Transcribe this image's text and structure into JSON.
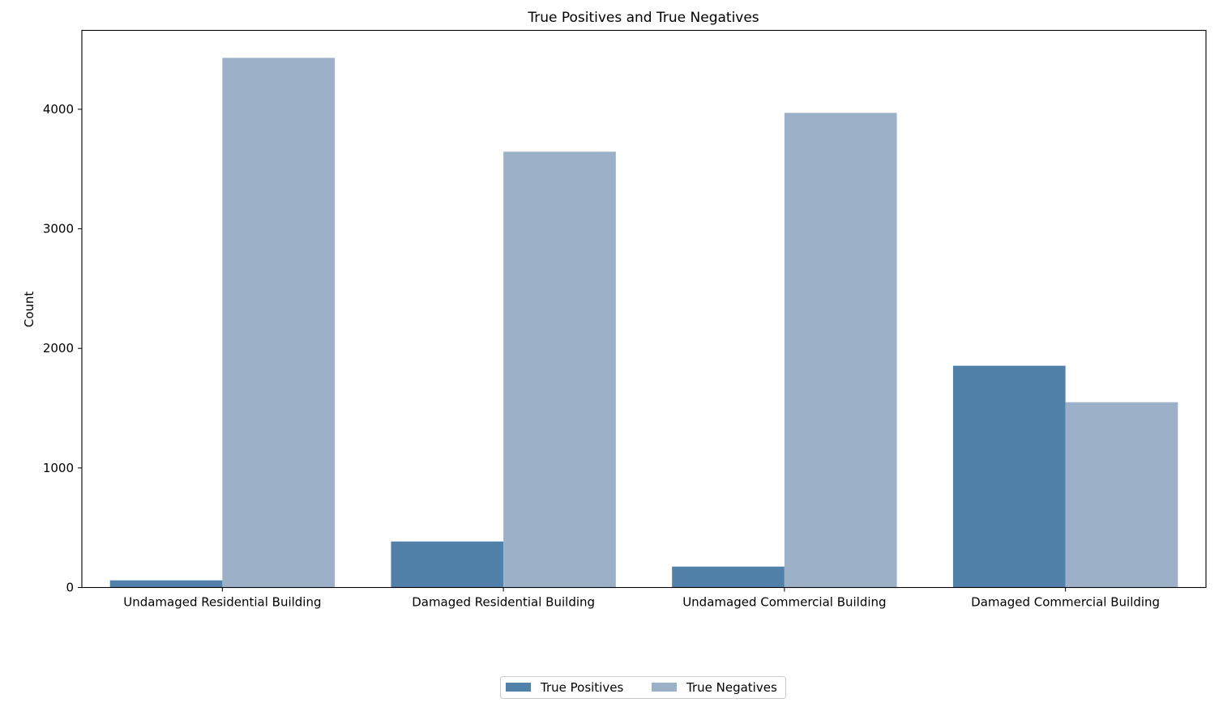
{
  "chart_data": {
    "type": "bar",
    "title": "True Positives and True Negatives",
    "xlabel": "",
    "ylabel": "Count",
    "categories": [
      "Undamaged Residential Building",
      "Damaged Residential Building",
      "Undamaged Commercial Building",
      "Damaged Commercial Building"
    ],
    "series": [
      {
        "name": "True Positives",
        "color": "#5181a8",
        "values": [
          60,
          385,
          175,
          1855
        ]
      },
      {
        "name": "True Negatives",
        "color": "#9cb1c8",
        "values": [
          4430,
          3645,
          3970,
          1550
        ]
      }
    ],
    "ylim": [
      0,
      4660
    ],
    "yticks": [
      0,
      1000,
      2000,
      3000,
      4000
    ],
    "ytick_labels": [
      "0",
      "1000",
      "2000",
      "3000",
      "4000"
    ],
    "grid": false,
    "legend_position": "bottom-center"
  }
}
